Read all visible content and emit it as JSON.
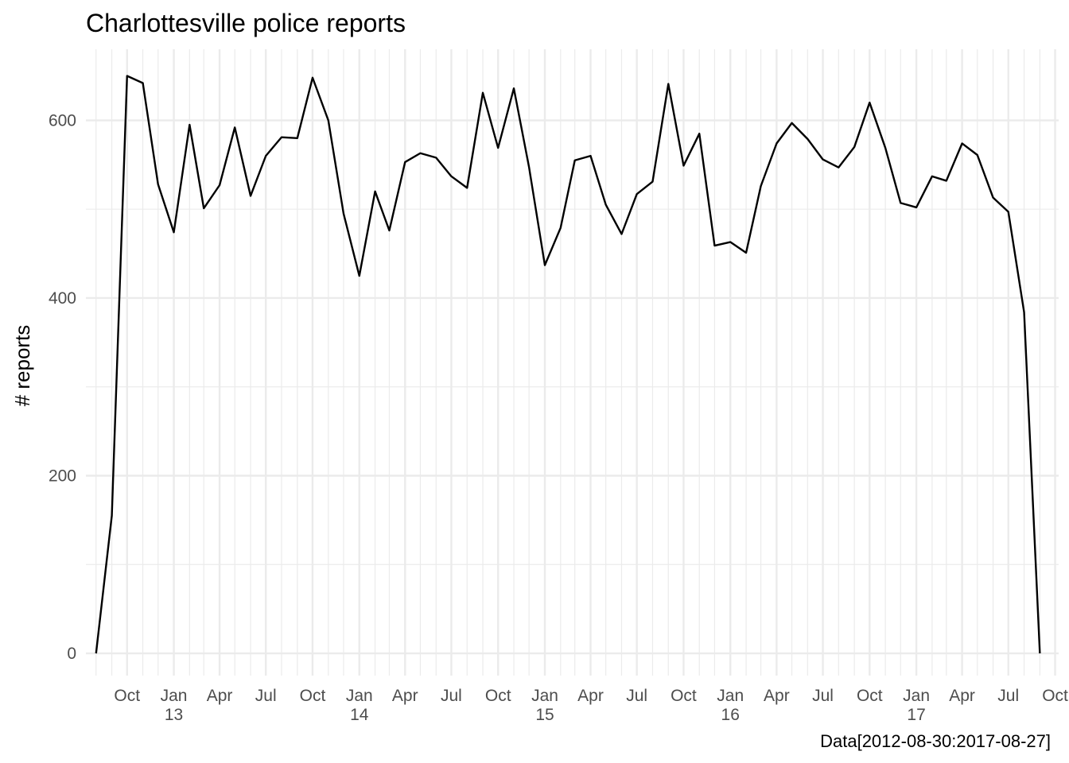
{
  "chart_data": {
    "type": "line",
    "title": "Charlottesville police reports",
    "xlabel": "",
    "ylabel": "# reports",
    "caption": "Data[2012-08-30:2017-08-27]",
    "xlim": [
      "2012-07-12",
      "2017-10-08"
    ],
    "ylim": [
      -25,
      680
    ],
    "yticks": [
      0,
      200,
      400,
      600
    ],
    "x_major_ticks": [
      {
        "date": "2012-10-01",
        "label": "Oct",
        "sublabel": ""
      },
      {
        "date": "2013-01-01",
        "label": "Jan",
        "sublabel": "13"
      },
      {
        "date": "2013-04-01",
        "label": "Apr",
        "sublabel": ""
      },
      {
        "date": "2013-07-01",
        "label": "Jul",
        "sublabel": ""
      },
      {
        "date": "2013-10-01",
        "label": "Oct",
        "sublabel": ""
      },
      {
        "date": "2014-01-01",
        "label": "Jan",
        "sublabel": "14"
      },
      {
        "date": "2014-04-01",
        "label": "Apr",
        "sublabel": ""
      },
      {
        "date": "2014-07-01",
        "label": "Jul",
        "sublabel": ""
      },
      {
        "date": "2014-10-01",
        "label": "Oct",
        "sublabel": ""
      },
      {
        "date": "2015-01-01",
        "label": "Jan",
        "sublabel": "15"
      },
      {
        "date": "2015-04-01",
        "label": "Apr",
        "sublabel": ""
      },
      {
        "date": "2015-07-01",
        "label": "Jul",
        "sublabel": ""
      },
      {
        "date": "2015-10-01",
        "label": "Oct",
        "sublabel": ""
      },
      {
        "date": "2016-01-01",
        "label": "Jan",
        "sublabel": "16"
      },
      {
        "date": "2016-04-01",
        "label": "Apr",
        "sublabel": ""
      },
      {
        "date": "2016-07-01",
        "label": "Jul",
        "sublabel": ""
      },
      {
        "date": "2016-10-01",
        "label": "Oct",
        "sublabel": ""
      },
      {
        "date": "2017-01-01",
        "label": "Jan",
        "sublabel": "17"
      },
      {
        "date": "2017-04-01",
        "label": "Apr",
        "sublabel": ""
      },
      {
        "date": "2017-07-01",
        "label": "Jul",
        "sublabel": ""
      },
      {
        "date": "2017-10-01",
        "label": "Oct",
        "sublabel": ""
      }
    ],
    "grid": true,
    "legend": "none",
    "colors": {
      "line": "#000000",
      "grid": "#ebebeb",
      "tick_text": "#4d4d4d"
    },
    "series": [
      {
        "x": [
          "2012-08-01",
          "2012-09-01",
          "2012-10-01",
          "2012-11-01",
          "2012-12-01",
          "2013-01-01",
          "2013-02-01",
          "2013-03-01",
          "2013-04-01",
          "2013-05-01",
          "2013-06-01",
          "2013-07-01",
          "2013-08-01",
          "2013-09-01",
          "2013-10-01",
          "2013-11-01",
          "2013-12-01",
          "2014-01-01",
          "2014-02-01",
          "2014-03-01",
          "2014-04-01",
          "2014-05-01",
          "2014-06-01",
          "2014-07-01",
          "2014-08-01",
          "2014-09-01",
          "2014-10-01",
          "2014-11-01",
          "2014-12-01",
          "2015-01-01",
          "2015-02-01",
          "2015-03-01",
          "2015-04-01",
          "2015-05-01",
          "2015-06-01",
          "2015-07-01",
          "2015-08-01",
          "2015-09-01",
          "2015-10-01",
          "2015-11-01",
          "2015-12-01",
          "2016-01-01",
          "2016-02-01",
          "2016-03-01",
          "2016-04-01",
          "2016-05-01",
          "2016-06-01",
          "2016-07-01",
          "2016-08-01",
          "2016-09-01",
          "2016-10-01",
          "2016-11-01",
          "2016-12-01",
          "2017-01-01",
          "2017-02-01",
          "2017-03-01",
          "2017-04-01",
          "2017-05-01",
          "2017-06-01",
          "2017-07-01",
          "2017-08-01",
          "2017-09-01"
        ],
        "y": [
          0,
          155,
          650,
          642,
          528,
          474,
          595,
          501,
          527,
          592,
          515,
          560,
          581,
          580,
          648,
          600,
          495,
          425,
          520,
          476,
          553,
          563,
          558,
          537,
          524,
          631,
          569,
          636,
          547,
          437,
          479,
          555,
          560,
          505,
          472,
          517,
          531,
          641,
          549,
          585,
          459,
          463,
          451,
          526,
          574,
          597,
          579,
          556,
          547,
          570,
          620,
          569,
          507,
          502,
          537,
          532,
          574,
          561,
          513,
          497,
          384,
          0
        ]
      }
    ]
  }
}
